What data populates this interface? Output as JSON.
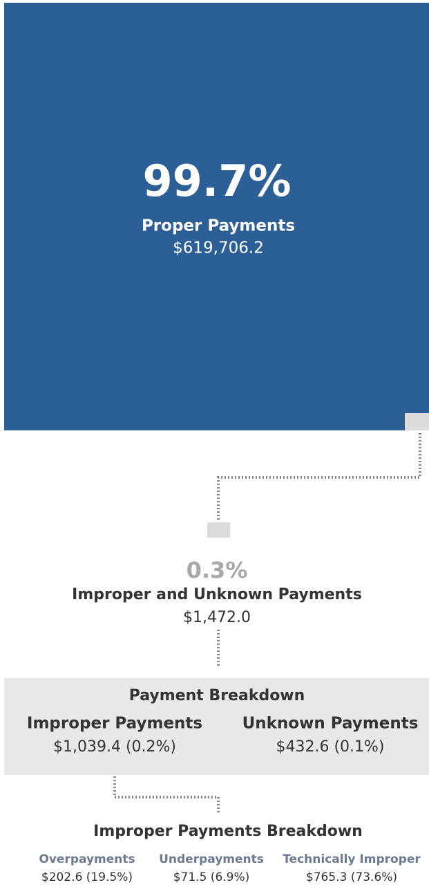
{
  "proper": {
    "percent": "99.7%",
    "label": "Proper Payments",
    "amount": "$619,706.2"
  },
  "improper_unknown": {
    "percent": "0.3%",
    "label": "Improper and Unknown Payments",
    "amount": "$1,472.0"
  },
  "payment_breakdown": {
    "title": "Payment Breakdown",
    "items": [
      {
        "label": "Improper Payments",
        "amount": "$1,039.4 (0.2%)"
      },
      {
        "label": "Unknown Payments",
        "amount": "$432.6 (0.1%)"
      }
    ]
  },
  "improper_breakdown": {
    "title": "Improper Payments Breakdown",
    "items": [
      {
        "label": "Overpayments",
        "amount": "$202.6 (19.5%)"
      },
      {
        "label": "Underpayments",
        "amount": "$71.5 (6.9%)"
      },
      {
        "label": "Technically Improper",
        "amount": "$765.3 (73.6%)"
      }
    ]
  }
}
